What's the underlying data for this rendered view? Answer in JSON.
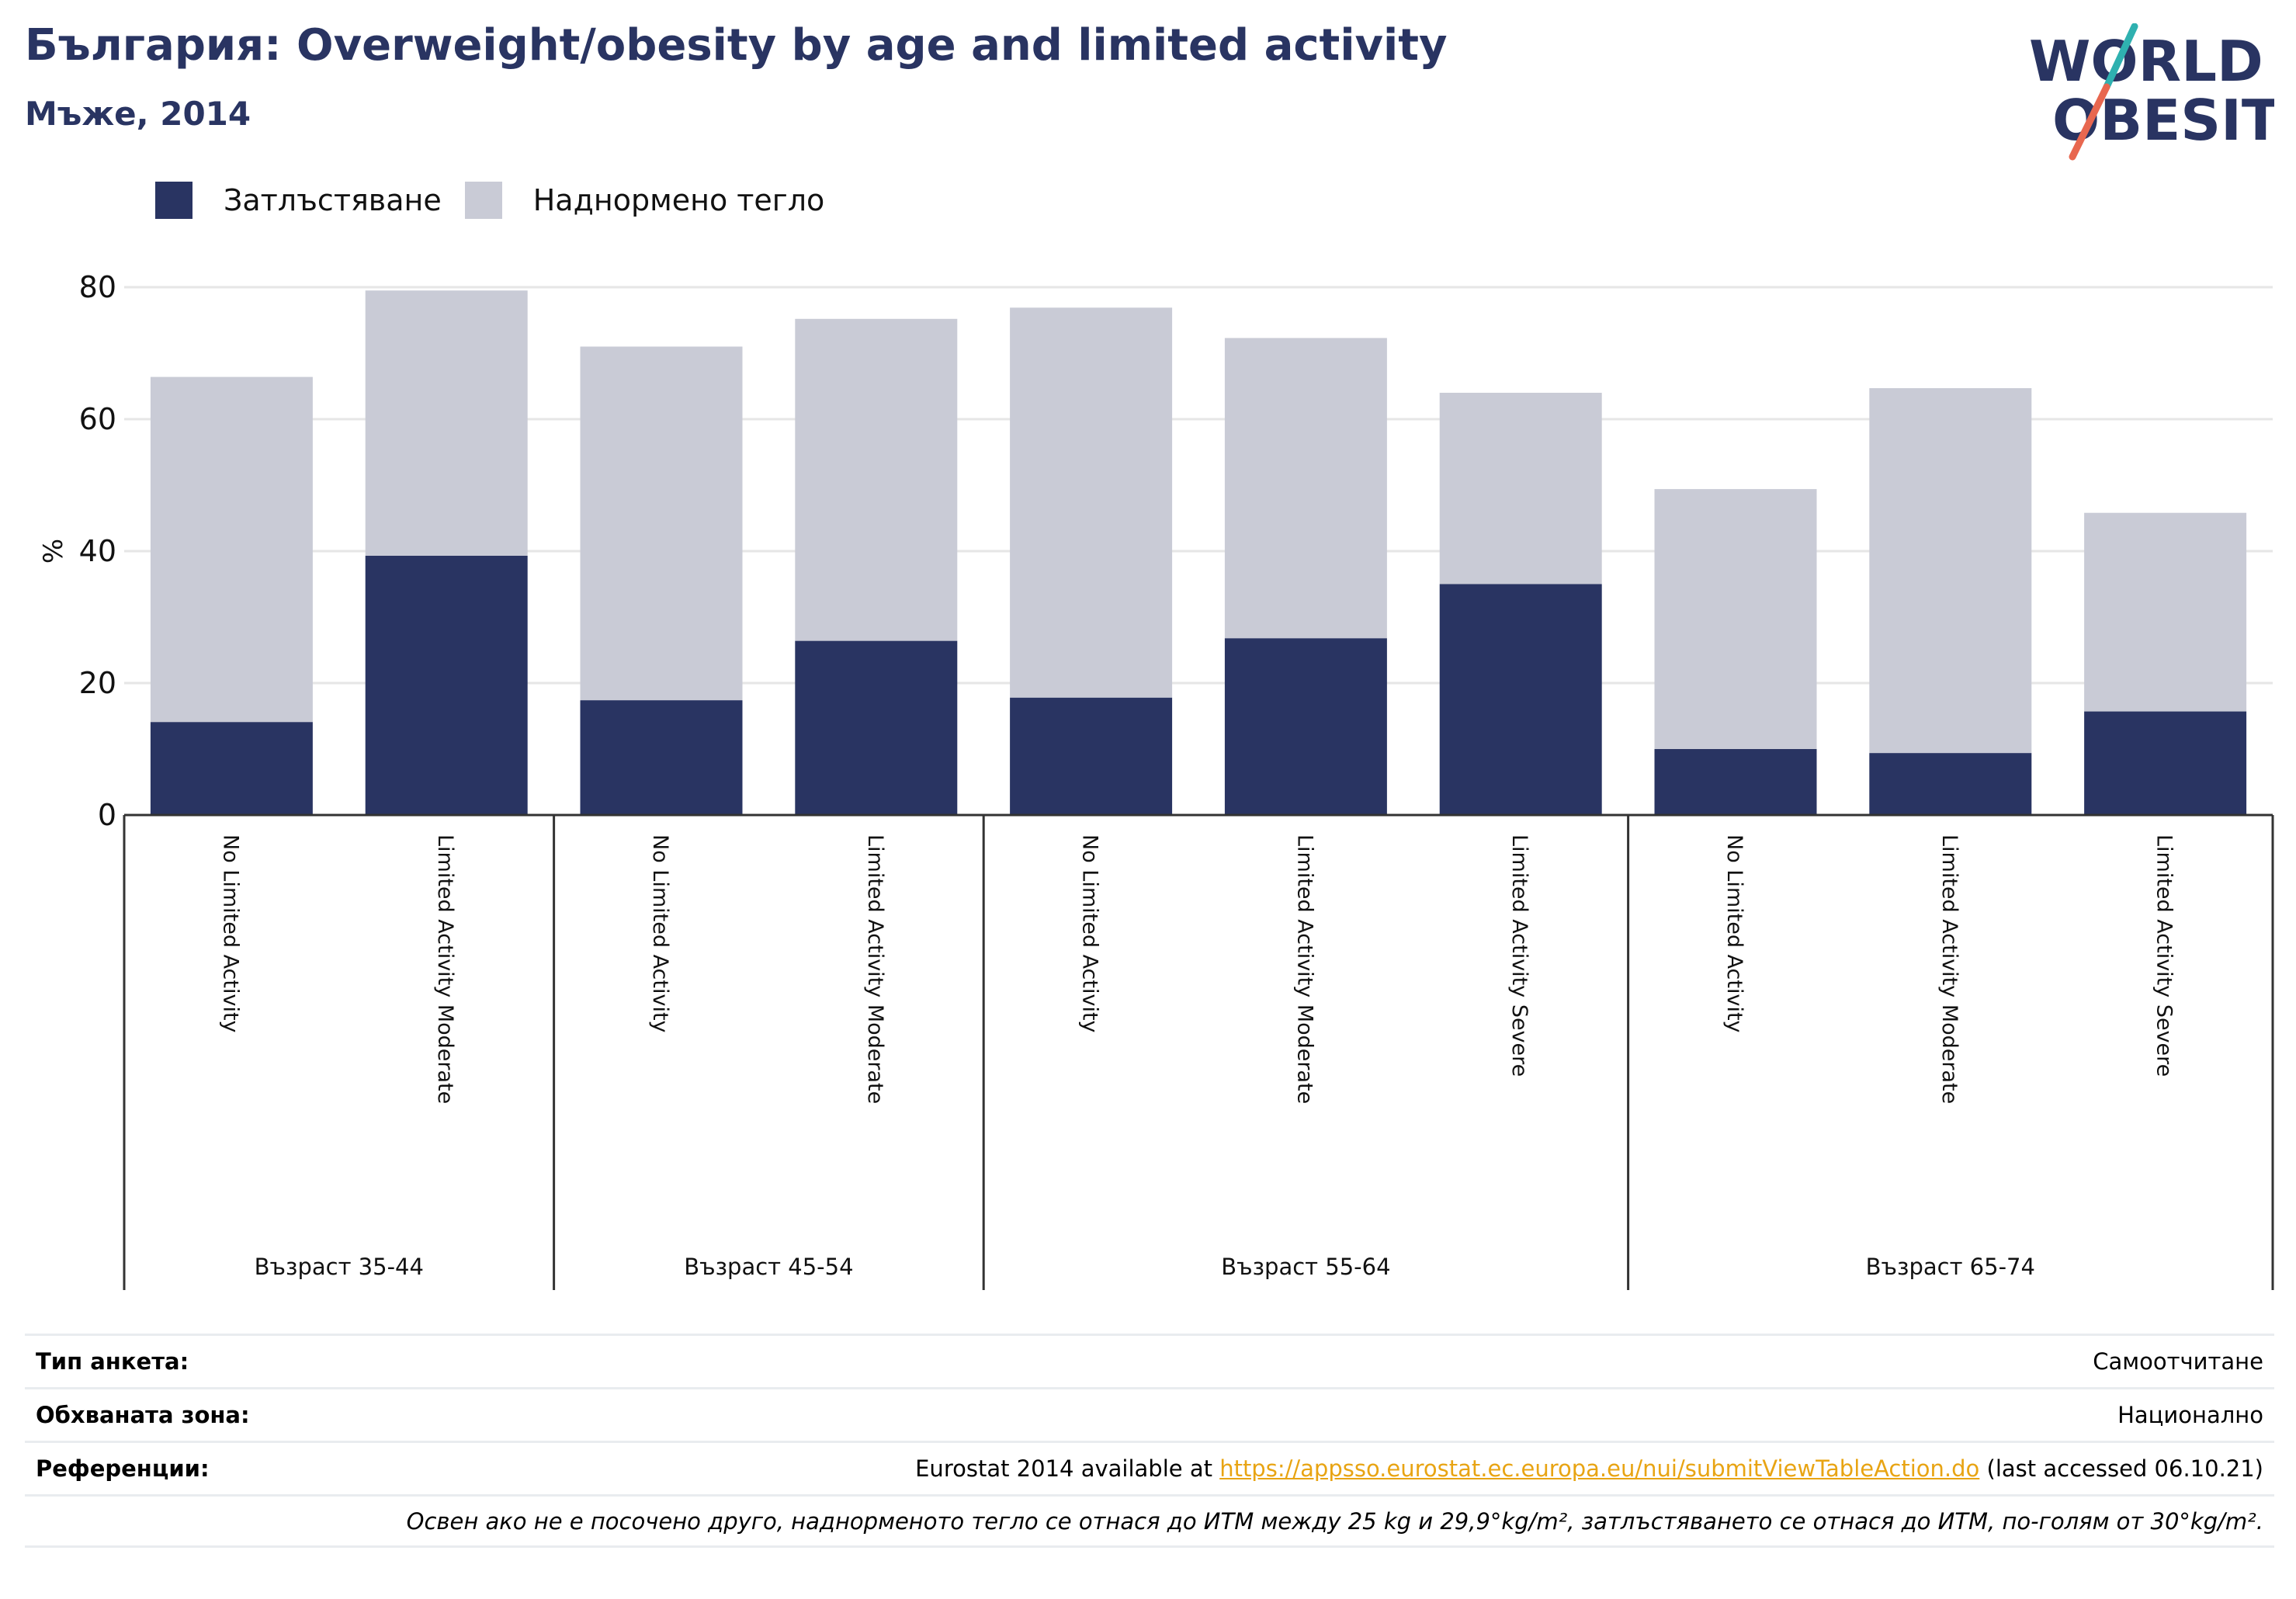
{
  "header": {
    "title": "България: Overweight/obesity by age and limited activity",
    "subtitle": "Мъже, 2014"
  },
  "logo": {
    "line1": "WORLD",
    "line2": "OBESITY"
  },
  "colors": {
    "obesity": "#293462",
    "overweight": "#c9cbd6",
    "title": "#293462",
    "accent_teal": "#2fb1b0",
    "accent_coral": "#e8674f",
    "link": "#e8a413"
  },
  "chart_data": {
    "type": "bar",
    "stacked": true,
    "ylabel": "%",
    "ylim": [
      0,
      80
    ],
    "yticks": [
      0,
      20,
      40,
      60,
      80
    ],
    "grid": true,
    "legend_position": "top-left",
    "groups": [
      {
        "label": "Възраст 35-44",
        "categories": [
          "No Limited Activity",
          "Limited Activity Moderate"
        ]
      },
      {
        "label": "Възраст 45-54",
        "categories": [
          "No Limited Activity",
          "Limited Activity Moderate"
        ]
      },
      {
        "label": "Възраст 55-64",
        "categories": [
          "No Limited Activity",
          "Limited Activity Moderate",
          "Limited Activity Severe"
        ]
      },
      {
        "label": "Възраст 65-74",
        "categories": [
          "No Limited Activity",
          "Limited Activity Moderate",
          "Limited Activity Severe"
        ]
      }
    ],
    "series": [
      {
        "name": "Затлъстяване",
        "color": "#293462",
        "values": [
          14.1,
          39.3,
          17.4,
          26.4,
          17.8,
          26.8,
          35.0,
          10.0,
          9.4,
          15.7
        ]
      },
      {
        "name": "Наднормено тегло",
        "color": "#c9cbd6",
        "values": [
          52.3,
          40.2,
          53.6,
          48.8,
          59.1,
          45.5,
          29.0,
          39.4,
          55.3,
          30.1
        ]
      }
    ]
  },
  "info": {
    "survey_type_label": "Тип анкета:",
    "survey_type_value": "Самоотчитане",
    "coverage_label": "Обхваната зона:",
    "coverage_value": "Национално",
    "references_label": "Референции:",
    "references_prefix": "Eurostat 2014 available at ",
    "references_link": "https://appsso.eurostat.ec.europa.eu/nui/submitViewTableAction.do",
    "references_suffix": " (last accessed 06.10.21)",
    "footnote": "Освен ако не е посочено друго, наднорменото тегло се отнася до ИТМ между 25 kg и 29,9°kg/m², затлъстяването се отнася до ИТМ, по-голям от 30°kg/m²."
  }
}
